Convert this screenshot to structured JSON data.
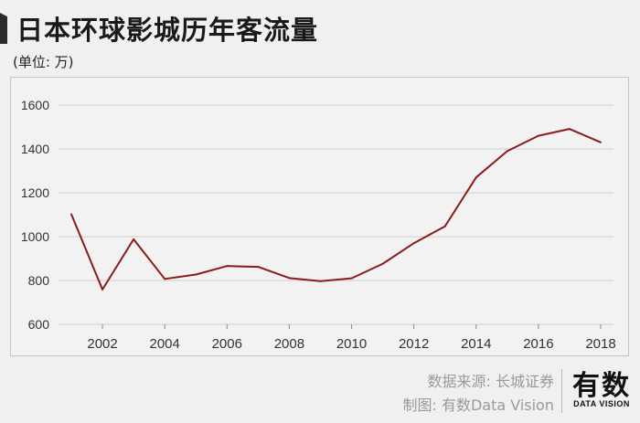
{
  "title": "日本环球影城历年客流量",
  "unit": "(单位: 万)",
  "source": "数据来源: 长城证券",
  "made_by": "制图: 有数Data Vision",
  "logo": {
    "main": "有数",
    "sub": "DATA VISION"
  },
  "colors": {
    "line": "#8b1a1a",
    "background": "#f0f0f0",
    "grid": "#cfcfcf"
  },
  "chart_data": {
    "type": "line",
    "title": "日本环球影城历年客流量",
    "xlabel": "",
    "ylabel": "",
    "x": [
      2001,
      2002,
      2003,
      2004,
      2005,
      2006,
      2007,
      2008,
      2009,
      2010,
      2011,
      2012,
      2013,
      2014,
      2015,
      2016,
      2017,
      2018
    ],
    "series": [
      {
        "values": [
          1102,
          759,
          988,
          807,
          827,
          866,
          862,
          811,
          797,
          810,
          876,
          970,
          1047,
          1270,
          1390,
          1460,
          1491,
          1430
        ]
      }
    ],
    "xticks": [
      "2002",
      "2004",
      "2006",
      "2008",
      "2010",
      "2012",
      "2014",
      "2016",
      "2018"
    ],
    "yticks": [
      "600",
      "800",
      "1000",
      "1200",
      "1400",
      "1600"
    ],
    "ylim": [
      600,
      1600
    ],
    "xlim": [
      2001,
      2018
    ],
    "grid": true,
    "legend": "none"
  }
}
